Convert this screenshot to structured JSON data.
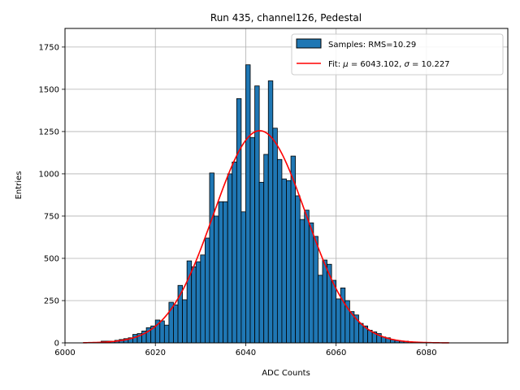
{
  "chart_data": {
    "type": "bar",
    "title": "Run 435, channel126, Pedestal",
    "xlabel": "ADC Counts",
    "ylabel": "Entries",
    "xlim": [
      6000,
      6098
    ],
    "ylim": [
      0,
      1860
    ],
    "xticks": [
      6000,
      6020,
      6040,
      6060,
      6080
    ],
    "yticks": [
      0,
      250,
      500,
      750,
      1000,
      1250,
      1500,
      1750
    ],
    "grid": true,
    "legend_position": "top-right",
    "bar_color": "#1f77b4",
    "bar_edge_color": "#000000",
    "fit_color": "#ff0000",
    "legend": {
      "samples_label": "Samples: RMS=10.29",
      "fit_label_prefix": "Fit: ",
      "fit_mu_symbol": "μ",
      "fit_mu_text": " = 6043.102, ",
      "fit_sigma_symbol": "σ",
      "fit_sigma_text": " = 10.227"
    },
    "histogram": {
      "bin_width": 1,
      "bins": [
        [
          6008,
          10
        ],
        [
          6009,
          10
        ],
        [
          6010,
          10
        ],
        [
          6011,
          15
        ],
        [
          6012,
          20
        ],
        [
          6013,
          25
        ],
        [
          6014,
          30
        ],
        [
          6015,
          50
        ],
        [
          6016,
          55
        ],
        [
          6017,
          70
        ],
        [
          6018,
          90
        ],
        [
          6019,
          100
        ],
        [
          6020,
          135
        ],
        [
          6021,
          130
        ],
        [
          6022,
          105
        ],
        [
          6023,
          240
        ],
        [
          6024,
          225
        ],
        [
          6025,
          340
        ],
        [
          6026,
          255
        ],
        [
          6027,
          485
        ],
        [
          6028,
          450
        ],
        [
          6029,
          480
        ],
        [
          6030,
          520
        ],
        [
          6031,
          620
        ],
        [
          6032,
          1005
        ],
        [
          6033,
          750
        ],
        [
          6034,
          835
        ],
        [
          6035,
          835
        ],
        [
          6036,
          1000
        ],
        [
          6037,
          1070
        ],
        [
          6038,
          1445
        ],
        [
          6039,
          775
        ],
        [
          6040,
          1645
        ],
        [
          6041,
          1215
        ],
        [
          6042,
          1520
        ],
        [
          6043,
          950
        ],
        [
          6044,
          1115
        ],
        [
          6045,
          1550
        ],
        [
          6046,
          1270
        ],
        [
          6047,
          1085
        ],
        [
          6048,
          970
        ],
        [
          6049,
          960
        ],
        [
          6050,
          1105
        ],
        [
          6051,
          870
        ],
        [
          6052,
          730
        ],
        [
          6053,
          785
        ],
        [
          6054,
          710
        ],
        [
          6055,
          630
        ],
        [
          6056,
          400
        ],
        [
          6057,
          490
        ],
        [
          6058,
          465
        ],
        [
          6059,
          370
        ],
        [
          6060,
          260
        ],
        [
          6061,
          325
        ],
        [
          6062,
          250
        ],
        [
          6063,
          185
        ],
        [
          6064,
          165
        ],
        [
          6065,
          115
        ],
        [
          6066,
          100
        ],
        [
          6067,
          75
        ],
        [
          6068,
          65
        ],
        [
          6069,
          55
        ],
        [
          6070,
          35
        ],
        [
          6071,
          30
        ],
        [
          6072,
          20
        ],
        [
          6073,
          15
        ],
        [
          6074,
          10
        ],
        [
          6075,
          10
        ]
      ]
    },
    "fit": {
      "type": "gaussian",
      "amplitude": 1255,
      "mu": 6043.102,
      "sigma": 10.227,
      "x_range": [
        6004,
        6085
      ]
    }
  }
}
